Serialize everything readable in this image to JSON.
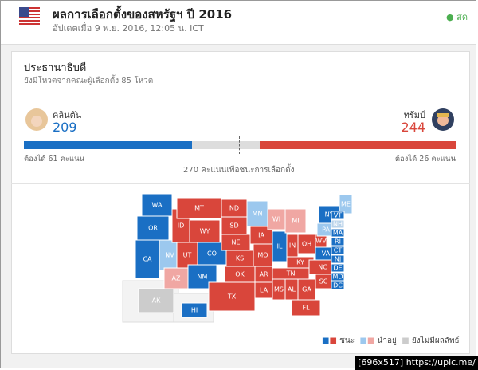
{
  "header": {
    "title": "ผลการเลือกตั้งของสหรัฐฯ ปี 2016",
    "updated": "อัปเดตเมื่อ 9 พ.ย. 2016, 12:05 น. ICT",
    "live": "สด"
  },
  "section": {
    "title": "ประธานาธิบดี",
    "subtitle": "ยังมีโหวตจากคณะผู้เลือกตั้ง 85 โหวต"
  },
  "candidates": [
    {
      "name": "คลินตัน",
      "votes": "209",
      "needed": "ต้องได้ 61 คะแนน"
    },
    {
      "name": "ทรัมป์",
      "votes": "244",
      "needed": "ต้องได้ 26 คะแนน"
    }
  ],
  "threshold": "270 คะแนนเพื่อชนะการเลือกตั้ง",
  "map": {
    "states": [
      {
        "label": "WA",
        "color": "#1a6fc4"
      },
      {
        "label": "OR",
        "color": "#1a6fc4"
      },
      {
        "label": "CA",
        "color": "#1a6fc4"
      },
      {
        "label": "NV",
        "color": "#9cc8ee"
      },
      {
        "label": "ID",
        "color": "#d9463b"
      },
      {
        "label": "MT",
        "color": "#d9463b"
      },
      {
        "label": "WY",
        "color": "#d9463b"
      },
      {
        "label": "UT",
        "color": "#d9463b"
      },
      {
        "label": "AZ",
        "color": "#f0a7a3"
      },
      {
        "label": "CO",
        "color": "#1a6fc4"
      },
      {
        "label": "NM",
        "color": "#1a6fc4"
      },
      {
        "label": "ND",
        "color": "#d9463b"
      },
      {
        "label": "SD",
        "color": "#d9463b"
      },
      {
        "label": "NE",
        "color": "#d9463b"
      },
      {
        "label": "KS",
        "color": "#d9463b"
      },
      {
        "label": "OK",
        "color": "#d9463b"
      },
      {
        "label": "TX",
        "color": "#d9463b"
      },
      {
        "label": "MN",
        "color": "#9cc8ee"
      },
      {
        "label": "IA",
        "color": "#d9463b"
      },
      {
        "label": "MO",
        "color": "#d9463b"
      },
      {
        "label": "AR",
        "color": "#d9463b"
      },
      {
        "label": "LA",
        "color": "#d9463b"
      },
      {
        "label": "WI",
        "color": "#f0a7a3"
      },
      {
        "label": "IL",
        "color": "#1a6fc4"
      },
      {
        "label": "MI",
        "color": "#f0a7a3"
      },
      {
        "label": "IN",
        "color": "#d9463b"
      },
      {
        "label": "OH",
        "color": "#d9463b"
      },
      {
        "label": "KY",
        "color": "#d9463b"
      },
      {
        "label": "TN",
        "color": "#d9463b"
      },
      {
        "label": "MS",
        "color": "#d9463b"
      },
      {
        "label": "AL",
        "color": "#d9463b"
      },
      {
        "label": "GA",
        "color": "#d9463b"
      },
      {
        "label": "FL",
        "color": "#d9463b"
      },
      {
        "label": "SC",
        "color": "#d9463b"
      },
      {
        "label": "NC",
        "color": "#d9463b"
      },
      {
        "label": "VA",
        "color": "#1a6fc4"
      },
      {
        "label": "WV",
        "color": "#d9463b"
      },
      {
        "label": "PA",
        "color": "#9cc8ee"
      },
      {
        "label": "NY",
        "color": "#1a6fc4"
      },
      {
        "label": "ME",
        "color": "#9cc8ee"
      },
      {
        "label": "AK",
        "color": "#cccccc"
      },
      {
        "label": "HI",
        "color": "#1a6fc4"
      },
      {
        "label": "VT",
        "color": "#1a6fc4"
      },
      {
        "label": "NH",
        "color": "#b9d3ea"
      },
      {
        "label": "MA",
        "color": "#1a6fc4"
      },
      {
        "label": "RI",
        "color": "#1a6fc4"
      },
      {
        "label": "CT",
        "color": "#1a6fc4"
      },
      {
        "label": "NJ",
        "color": "#1a6fc4"
      },
      {
        "label": "DE",
        "color": "#1a6fc4"
      },
      {
        "label": "MD",
        "color": "#1a6fc4"
      },
      {
        "label": "DC",
        "color": "#1a6fc4"
      }
    ]
  },
  "legend": [
    "ชนะ",
    "นำอยู่",
    "ยังไม่มีผลลัพธ์"
  ],
  "watermark": "[696x517] https://upic.me/"
}
